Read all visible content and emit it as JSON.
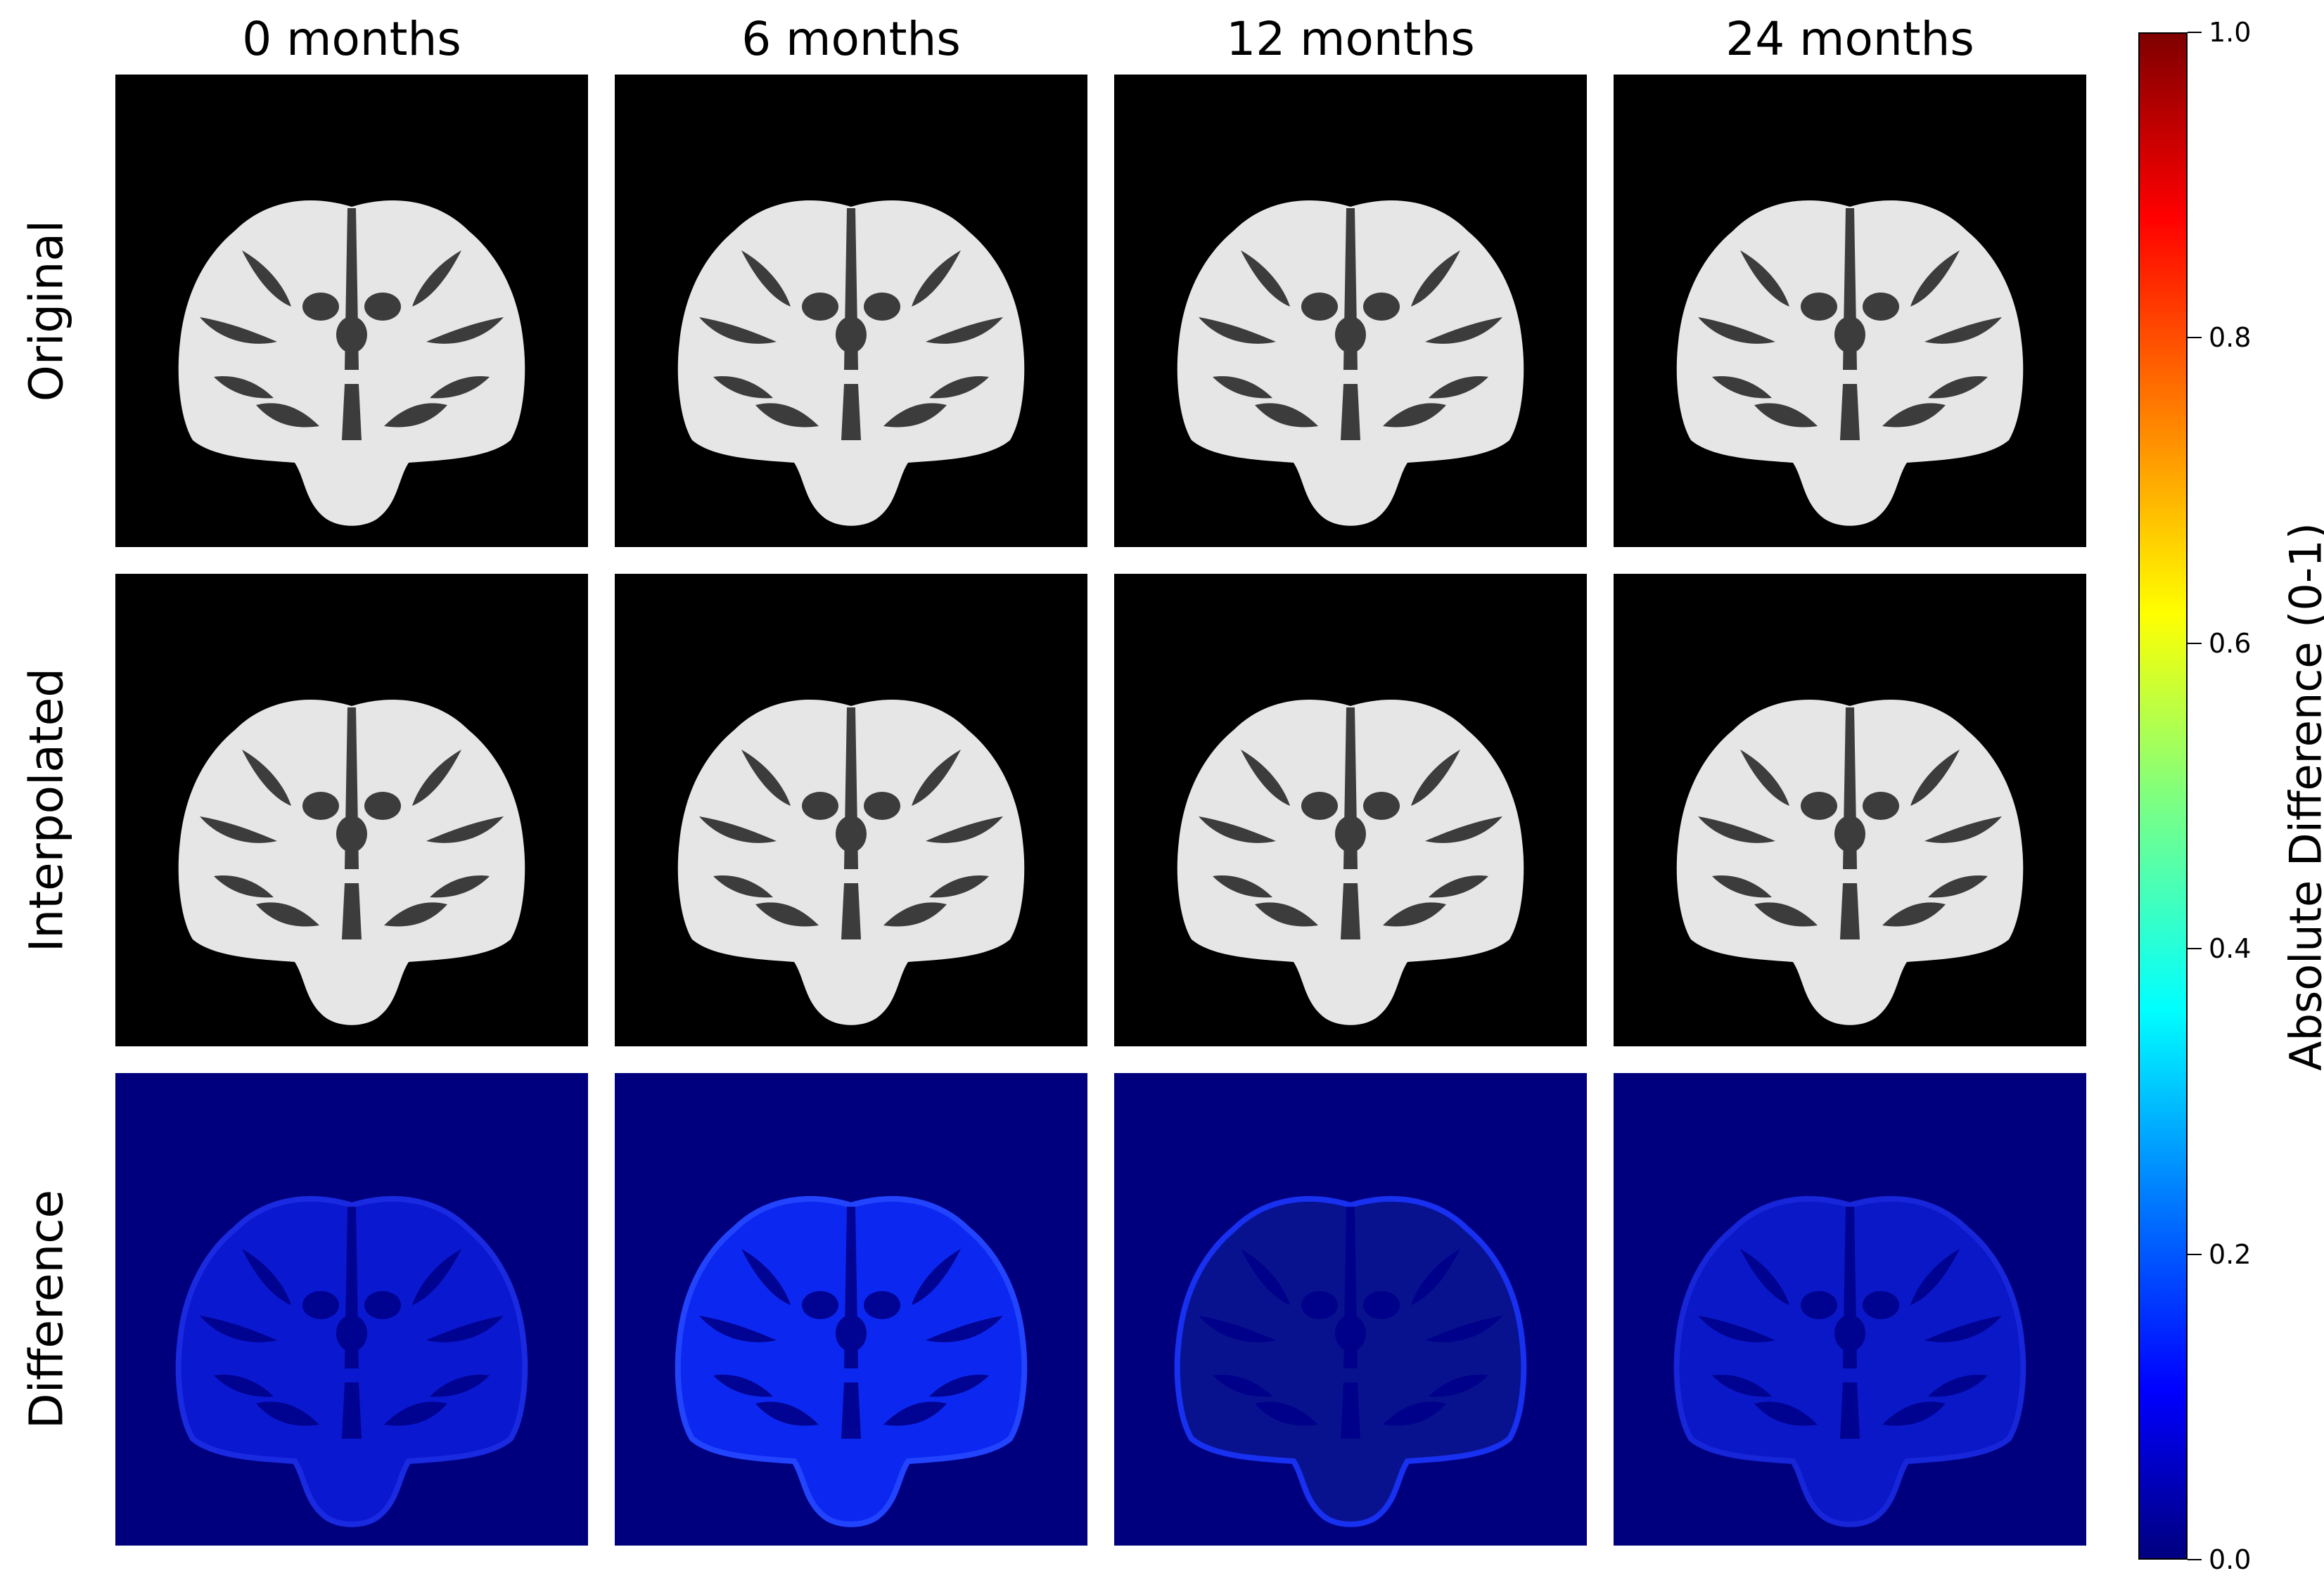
{
  "columns": [
    "0 months",
    "6 months",
    "12 months",
    "24 months"
  ],
  "rows": [
    "Original",
    "Interpolated",
    "Difference"
  ],
  "colorbar": {
    "label": "Absolute Difference (0-1)",
    "ticks": [
      "0.0",
      "0.2",
      "0.4",
      "0.6",
      "0.8",
      "1.0"
    ],
    "range": [
      0,
      1
    ],
    "colormap": "jet"
  },
  "colors": {
    "mri_background": "#000000",
    "brain_tissue": "#e6e6e6",
    "difference_background": "#00007f",
    "difference_tissue": "#0a14e6"
  }
}
